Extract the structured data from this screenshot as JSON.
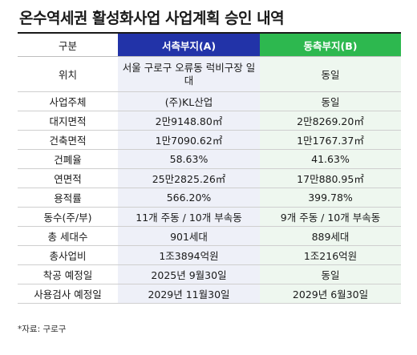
{
  "title": "온수역세권 활성화사업 사업계획 승인 내역",
  "header": {
    "col0": "구분",
    "col1": "서측부지(A)",
    "col2": "동측부지(B)"
  },
  "rows": [
    {
      "label": "위치",
      "a": "서울 구로구 오류동 럭비구장 일대",
      "b": "동일"
    },
    {
      "label": "사업주체",
      "a": "(주)KL산업",
      "b": "동일"
    },
    {
      "label": "대지면적",
      "a": "2만9148.80㎡",
      "b": "2만8269.20㎡"
    },
    {
      "label": "건축면적",
      "a": "1만7090.62㎡",
      "b": "1만1767.37㎡"
    },
    {
      "label": "건폐율",
      "a": "58.63%",
      "b": "41.63%"
    },
    {
      "label": "연면적",
      "a": "25만2825.26㎡",
      "b": "17만880.95㎡"
    },
    {
      "label": "용적률",
      "a": "566.20%",
      "b": "399.78%"
    },
    {
      "label": "동수(주/부)",
      "a": "11개 주동 / 10개 부속동",
      "b": "9개 주동 / 10개 부속동"
    },
    {
      "label": "총 세대수",
      "a": "901세대",
      "b": "889세대"
    },
    {
      "label": "총사업비",
      "a": "1조3894억원",
      "b": "1조216억원"
    },
    {
      "label": "착공 예정일",
      "a": "2025년 9월30일",
      "b": "동일"
    },
    {
      "label": "사용검사 예정일",
      "a": "2029년 11월30일",
      "b": "2029년 6월30일"
    }
  ],
  "source": "*자료: 구로구",
  "colors": {
    "header_a": "#2233a8",
    "header_b": "#2db84f"
  }
}
